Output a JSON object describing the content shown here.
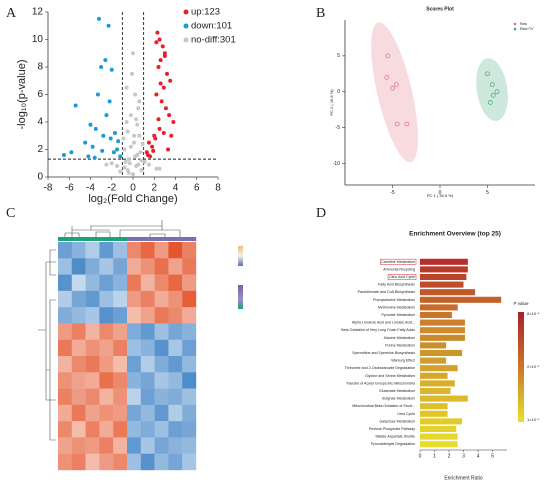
{
  "chart_data": [
    {
      "type": "scatter",
      "label": "A",
      "xlabel": "log₂(Fold Change)",
      "ylabel": "-log₁₀(p-value)",
      "xlim": [
        -8,
        8
      ],
      "xticks": [
        -8,
        -6,
        -4,
        -2,
        0,
        2,
        4,
        6,
        8
      ],
      "ylim": [
        0,
        12
      ],
      "yticks": [
        0,
        2,
        4,
        6,
        8,
        10,
        12
      ],
      "thresholds": {
        "x": [
          -1,
          1
        ],
        "y": [
          1.3
        ]
      },
      "legend": "upper right",
      "series": [
        {
          "name": "up:123",
          "color": "#e8202a",
          "x": [
            2.3,
            2.5,
            2.8,
            3.0,
            2.6,
            2.4,
            3.2,
            3.5,
            2.9,
            2.2,
            2.7,
            3.1,
            3.4,
            3.8,
            2.5,
            2.0,
            1.5,
            1.8,
            1.3,
            2.1,
            1.6,
            2.9,
            3.3,
            2.4,
            2.6,
            3.0,
            1.9,
            1.4,
            2.2,
            3.6
          ],
          "y": [
            10.5,
            10.0,
            9.5,
            9.0,
            8.5,
            8.0,
            7.5,
            7.0,
            6.5,
            6.0,
            5.5,
            5.0,
            4.5,
            4.0,
            3.5,
            3.0,
            2.5,
            2.2,
            1.8,
            2.8,
            1.5,
            3.2,
            2.0,
            4.2,
            6.8,
            8.8,
            1.9,
            1.6,
            9.8,
            3.0
          ]
        },
        {
          "name": "down:101",
          "color": "#1a9ad6",
          "x": [
            -3.2,
            -2.3,
            -2.6,
            -3.0,
            -2.2,
            -5.4,
            -4.0,
            -3.5,
            -2.8,
            -2.1,
            -4.5,
            -3.8,
            -1.5,
            -1.8,
            -1.2,
            -2.5,
            -3.3,
            -6.5,
            -5.8,
            -2.0,
            -1.4,
            -2.9,
            -3.6,
            -4.2,
            -1.7
          ],
          "y": [
            11.5,
            11.0,
            8.5,
            8.0,
            5.5,
            5.2,
            3.8,
            3.5,
            3.0,
            2.8,
            2.5,
            2.2,
            2.0,
            1.8,
            1.5,
            4.5,
            6.0,
            1.6,
            1.8,
            7.8,
            2.6,
            1.9,
            1.4,
            1.5,
            3.2
          ]
        },
        {
          "name": "no-diff:301",
          "color": "#c8c8c8",
          "x": [
            -0.5,
            0.3,
            0.8,
            -0.8,
            0.1,
            -0.2,
            0.6,
            -0.6,
            0.4,
            -0.9,
            0.9,
            0.2,
            -0.3,
            0.5,
            -0.4,
            0.0,
            0.7,
            -0.7,
            -1.5,
            1.5,
            -2.0,
            2.2,
            -0.1,
            0.3,
            -0.5,
            0.6,
            -0.2,
            0.1,
            -0.8,
            0.8,
            -1.2,
            1.1,
            -2.5,
            2.5,
            0.4,
            -0.4,
            0.0,
            -0.6,
            0.5,
            0.2
          ],
          "y": [
            0.5,
            0.8,
            1.2,
            2.0,
            3.0,
            4.5,
            5.5,
            6.5,
            3.8,
            2.8,
            2.4,
            1.5,
            1.0,
            0.9,
            0.3,
            0.2,
            1.8,
            1.1,
            0.8,
            0.9,
            1.0,
            0.6,
            7.5,
            4.2,
            3.3,
            3.0,
            2.2,
            2.5,
            0.7,
            0.5,
            0.4,
            1.1,
            0.9,
            0.6,
            1.6,
            1.3,
            9.0,
            4.0,
            5.0,
            6.0
          ]
        }
      ]
    },
    {
      "type": "scatter",
      "label": "B",
      "title": "Scores Plot",
      "xlabel": "PC 1 ( 39.5 %)",
      "ylabel": "PC 2 ( 16.8 %)",
      "xlim": [
        -10,
        10
      ],
      "xticks": [
        -5,
        0,
        5
      ],
      "ylim": [
        -13,
        10
      ],
      "yticks": [
        5,
        0,
        -5,
        -10
      ],
      "ellipses": true,
      "legend": "upper right",
      "series": [
        {
          "name": "Raw",
          "color": "#e0707a",
          "x": [
            -5.5,
            -5.6,
            -5.0,
            -4.6,
            -4.5,
            -3.5
          ],
          "y": [
            5.0,
            2.0,
            0.5,
            1.0,
            -4.5,
            -4.5
          ]
        },
        {
          "name": "Raw+TV",
          "color": "#3aa37a",
          "x": [
            5.0,
            5.5,
            6.0,
            5.3,
            5.6
          ],
          "y": [
            2.5,
            1.0,
            0.0,
            -1.5,
            -0.5
          ]
        }
      ]
    },
    {
      "type": "heatmap",
      "label": "C",
      "zlim": [
        -2,
        2
      ],
      "colors": [
        "#3b7fc4",
        "#ffffff",
        "#e4572e"
      ],
      "column_colors": [
        "#1aa37a",
        "#7b6fb3"
      ],
      "matrix": [
        [
          -1.5,
          -1.2,
          -0.8,
          -1.6,
          -1.0,
          1.4,
          1.8,
          1.2,
          2.0,
          1.5
        ],
        [
          -1.0,
          -1.8,
          -1.3,
          -0.9,
          -1.4,
          1.0,
          1.3,
          1.7,
          1.1,
          1.6
        ],
        [
          -1.7,
          -0.6,
          -1.1,
          -1.5,
          -1.2,
          1.6,
          0.9,
          1.4,
          1.8,
          1.2
        ],
        [
          -0.8,
          -1.4,
          -1.6,
          -1.0,
          -0.7,
          1.2,
          1.5,
          1.0,
          1.3,
          1.9
        ],
        [
          -1.3,
          -1.1,
          -0.9,
          -1.7,
          -1.5,
          0.8,
          1.1,
          1.6,
          1.4,
          1.0
        ],
        [
          1.2,
          1.5,
          0.9,
          1.4,
          1.1,
          -1.3,
          -1.6,
          -1.0,
          -1.4,
          -1.2
        ],
        [
          1.6,
          1.0,
          1.3,
          1.1,
          1.5,
          -1.0,
          -1.2,
          -1.7,
          -0.9,
          -1.5
        ],
        [
          0.9,
          1.4,
          1.6,
          1.2,
          0.8,
          -1.5,
          -0.8,
          -1.3,
          -1.6,
          -1.1
        ],
        [
          1.3,
          1.1,
          1.0,
          1.7,
          1.4,
          -1.2,
          -1.4,
          -0.9,
          -1.1,
          -1.8
        ],
        [
          1.5,
          1.2,
          1.4,
          0.9,
          1.3,
          -0.7,
          -1.5,
          -1.2,
          -1.3,
          -1.0
        ],
        [
          1.0,
          1.6,
          1.1,
          1.3,
          1.2,
          -1.4,
          -1.1,
          -1.6,
          -0.8,
          -1.3
        ],
        [
          1.4,
          0.8,
          1.5,
          1.0,
          1.6,
          -1.1,
          -1.3,
          -1.0,
          -1.5,
          -1.4
        ],
        [
          1.1,
          1.3,
          1.2,
          1.5,
          0.9,
          -1.6,
          -0.9,
          -1.4,
          -1.2,
          -1.1
        ],
        [
          1.3,
          1.5,
          0.8,
          1.2,
          1.4,
          -1.0,
          -1.7,
          -1.1,
          -1.4,
          -0.9
        ]
      ]
    },
    {
      "type": "barh",
      "label": "D",
      "title": "Enrichment Overview (top 25)",
      "xlabel": "Enrichment Ratio",
      "xlim": [
        0,
        6
      ],
      "xticks": [
        0,
        1,
        2,
        3,
        4,
        5
      ],
      "legend_title": "P value",
      "colorbar_labels": [
        "8×10⁻¹",
        "2×10⁻¹",
        "1×10⁻¹"
      ],
      "highlighted": [
        0,
        2
      ],
      "categories": [
        "Carnitine Metabolism",
        "Ammonia Recycling",
        "Citric Acid Cycle",
        "Fatty Acid Biosynthesis",
        "Pantothenate and CoA Biosynthesis",
        "Phenylalanine Metabolism",
        "Methionine Metabolism",
        "Pyruvate Metabolism",
        "Alpha Linolenic Acid and Linoleic Acid...",
        "Beta Oxidation of Very Long Chain Fatty Acids",
        "Alanine Metabolism",
        "Purine Metabolism",
        "Spermidine and Spermine Biosynthesis",
        "Warburg Effect",
        "Threonine and 2-Oxobutanoate Degradation",
        "Glycine and Serine Metabolism",
        "Transfer of Acetyl Groups into Mitochondria",
        "Glutamate Metabolism",
        "Butyrate Metabolism",
        "Mitochondrial Beta-Oxidation of Short...",
        "Urea Cycle",
        "Galactose Metabolism",
        "Pentose Phosphate Pathway",
        "Malate-Aspartate Shuttle",
        "Pyruvaldehyde Degradation"
      ],
      "values": [
        3.3,
        3.3,
        3.2,
        3.0,
        3.8,
        5.6,
        2.6,
        2.2,
        3.1,
        3.1,
        3.1,
        1.8,
        2.9,
        1.8,
        2.6,
        1.9,
        2.4,
        2.1,
        3.3,
        1.9,
        1.9,
        2.9,
        2.5,
        2.6,
        2.6
      ],
      "colors": [
        "#b5302a",
        "#b83a2a",
        "#bb442a",
        "#be4e2a",
        "#c1582a",
        "#c4622a",
        "#c76c2a",
        "#ca762a",
        "#cd802a",
        "#d08a2a",
        "#c88a2a",
        "#c8902a",
        "#cc962a",
        "#d09c2a",
        "#d4a22a",
        "#d6a82a",
        "#d8ae2a",
        "#dab42a",
        "#dcba2a",
        "#dec02a",
        "#e0c62a",
        "#e2cc2a",
        "#e4d22a",
        "#e6d82a",
        "#e8de2a"
      ]
    }
  ]
}
